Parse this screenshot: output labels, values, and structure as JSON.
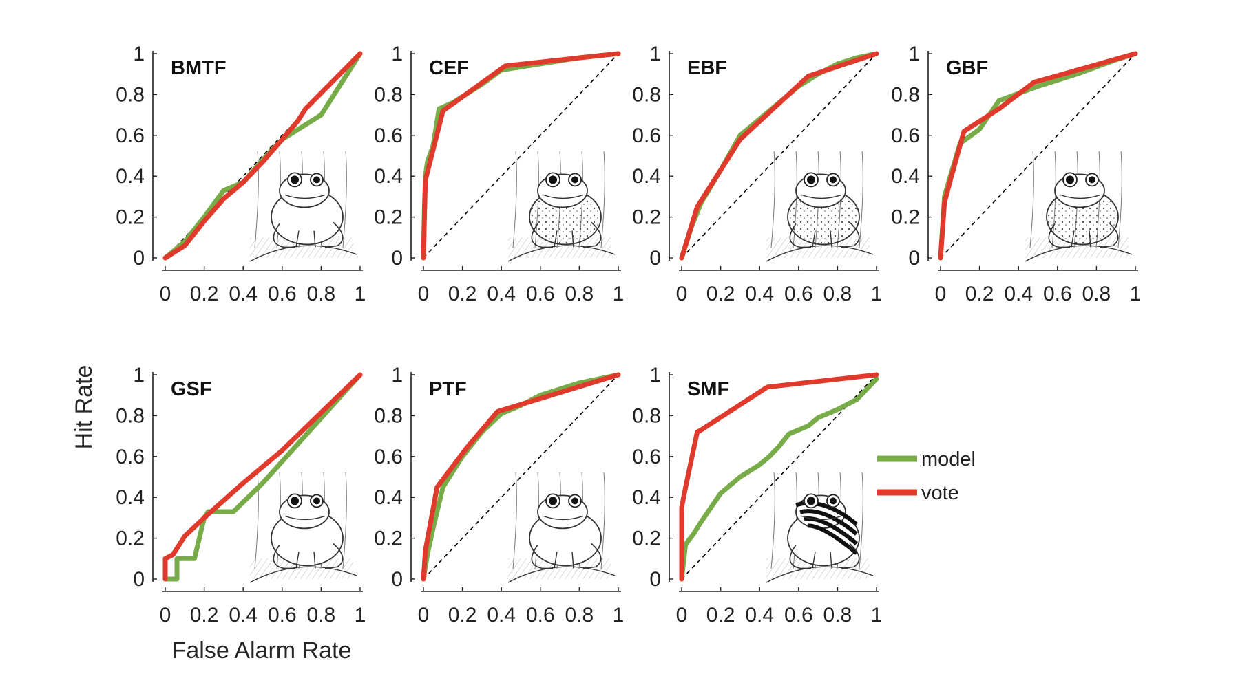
{
  "figure": {
    "xlabel": "False Alarm Rate",
    "ylabel": "Hit Rate"
  },
  "legend": {
    "position": "right",
    "entries": [
      {
        "name": "model",
        "color": "#77ac48"
      },
      {
        "name": "vote",
        "color": "#e03a2c"
      }
    ]
  },
  "colors": {
    "model": "#77ac48",
    "vote": "#e03a2c",
    "chance": "#000000",
    "axes": "#222222"
  },
  "chart_data": [
    {
      "type": "line",
      "title": "BMTF",
      "xlim": [
        0,
        1
      ],
      "ylim": [
        0,
        1
      ],
      "xticks": [
        "0",
        "0.2",
        "0.4",
        "0.6",
        "0.8",
        "1"
      ],
      "yticks": [
        "0",
        "0.2",
        "0.4",
        "0.6",
        "0.8",
        "1"
      ],
      "chance_line": true,
      "illustration": "frog-on-branch",
      "series": [
        {
          "name": "model",
          "points": [
            [
              0,
              0
            ],
            [
              0.05,
              0.04
            ],
            [
              0.1,
              0.08
            ],
            [
              0.2,
              0.2
            ],
            [
              0.3,
              0.33
            ],
            [
              0.4,
              0.37
            ],
            [
              0.5,
              0.48
            ],
            [
              0.6,
              0.58
            ],
            [
              0.8,
              0.7
            ],
            [
              1,
              1
            ]
          ]
        },
        {
          "name": "vote",
          "points": [
            [
              0,
              0
            ],
            [
              0.1,
              0.06
            ],
            [
              0.2,
              0.18
            ],
            [
              0.3,
              0.29
            ],
            [
              0.4,
              0.37
            ],
            [
              0.5,
              0.47
            ],
            [
              0.6,
              0.58
            ],
            [
              0.68,
              0.67
            ],
            [
              0.72,
              0.73
            ],
            [
              1,
              1
            ]
          ]
        }
      ]
    },
    {
      "type": "line",
      "title": "CEF",
      "xlim": [
        0,
        1
      ],
      "ylim": [
        0,
        1
      ],
      "xticks": [
        "0",
        "0.2",
        "0.4",
        "0.6",
        "0.8",
        "1"
      ],
      "yticks": [
        "0",
        "0.2",
        "0.4",
        "0.6",
        "0.8",
        "1"
      ],
      "chance_line": true,
      "illustration": "frog-in-grass",
      "series": [
        {
          "name": "model",
          "points": [
            [
              0,
              0
            ],
            [
              0.005,
              0.25
            ],
            [
              0.01,
              0.4
            ],
            [
              0.02,
              0.47
            ],
            [
              0.05,
              0.55
            ],
            [
              0.08,
              0.73
            ],
            [
              0.15,
              0.76
            ],
            [
              0.3,
              0.85
            ],
            [
              0.4,
              0.92
            ],
            [
              0.6,
              0.95
            ],
            [
              0.8,
              0.98
            ],
            [
              1,
              1
            ]
          ]
        },
        {
          "name": "vote",
          "points": [
            [
              0,
              0
            ],
            [
              0.01,
              0.38
            ],
            [
              0.1,
              0.72
            ],
            [
              0.42,
              0.94
            ],
            [
              1,
              1
            ]
          ]
        }
      ]
    },
    {
      "type": "line",
      "title": "EBF",
      "xlim": [
        0,
        1
      ],
      "ylim": [
        0,
        1
      ],
      "xticks": [
        "0",
        "0.2",
        "0.4",
        "0.6",
        "0.8",
        "1"
      ],
      "yticks": [
        "0",
        "0.2",
        "0.4",
        "0.6",
        "0.8",
        "1"
      ],
      "chance_line": true,
      "illustration": "toad",
      "series": [
        {
          "name": "model",
          "points": [
            [
              0,
              0
            ],
            [
              0.05,
              0.15
            ],
            [
              0.1,
              0.27
            ],
            [
              0.2,
              0.43
            ],
            [
              0.3,
              0.6
            ],
            [
              0.4,
              0.68
            ],
            [
              0.5,
              0.76
            ],
            [
              0.6,
              0.84
            ],
            [
              0.7,
              0.9
            ],
            [
              0.8,
              0.95
            ],
            [
              0.9,
              0.98
            ],
            [
              1,
              1
            ]
          ]
        },
        {
          "name": "vote",
          "points": [
            [
              0,
              0
            ],
            [
              0.08,
              0.25
            ],
            [
              0.3,
              0.58
            ],
            [
              0.65,
              0.89
            ],
            [
              1,
              1
            ]
          ]
        }
      ]
    },
    {
      "type": "line",
      "title": "GBF",
      "xlim": [
        0,
        1
      ],
      "ylim": [
        0,
        1
      ],
      "xticks": [
        "0",
        "0.2",
        "0.4",
        "0.6",
        "0.8",
        "1"
      ],
      "yticks": [
        "0",
        "0.2",
        "0.4",
        "0.6",
        "0.8",
        "1"
      ],
      "chance_line": true,
      "illustration": "bullfrog",
      "series": [
        {
          "name": "model",
          "points": [
            [
              0,
              0
            ],
            [
              0.02,
              0.3
            ],
            [
              0.05,
              0.4
            ],
            [
              0.1,
              0.56
            ],
            [
              0.2,
              0.63
            ],
            [
              0.3,
              0.77
            ],
            [
              0.5,
              0.84
            ],
            [
              0.7,
              0.9
            ],
            [
              0.9,
              0.97
            ],
            [
              1,
              1
            ]
          ]
        },
        {
          "name": "vote",
          "points": [
            [
              0,
              0
            ],
            [
              0.02,
              0.27
            ],
            [
              0.05,
              0.38
            ],
            [
              0.12,
              0.62
            ],
            [
              0.3,
              0.73
            ],
            [
              0.48,
              0.86
            ],
            [
              1,
              1
            ]
          ]
        }
      ]
    },
    {
      "type": "line",
      "title": "GSF",
      "xlim": [
        0,
        1
      ],
      "ylim": [
        0,
        1
      ],
      "xticks": [
        "0",
        "0.2",
        "0.4",
        "0.6",
        "0.8",
        "1"
      ],
      "yticks": [
        "0",
        "0.2",
        "0.4",
        "0.6",
        "0.8",
        "1"
      ],
      "chance_line": false,
      "illustration": "frog-with-ferns",
      "series": [
        {
          "name": "model",
          "points": [
            [
              0,
              0
            ],
            [
              0.06,
              0
            ],
            [
              0.06,
              0.1
            ],
            [
              0.15,
              0.1
            ],
            [
              0.2,
              0.3
            ],
            [
              0.22,
              0.33
            ],
            [
              0.35,
              0.33
            ],
            [
              0.5,
              0.47
            ],
            [
              1,
              1
            ]
          ]
        },
        {
          "name": "vote",
          "points": [
            [
              0,
              0
            ],
            [
              0,
              0.1
            ],
            [
              0.04,
              0.12
            ],
            [
              0.1,
              0.21
            ],
            [
              0.2,
              0.3
            ],
            [
              0.4,
              0.47
            ],
            [
              0.6,
              0.63
            ],
            [
              1,
              1
            ]
          ]
        }
      ]
    },
    {
      "type": "line",
      "title": "PTF",
      "xlim": [
        0,
        1
      ],
      "ylim": [
        0,
        1
      ],
      "xticks": [
        "0",
        "0.2",
        "0.4",
        "0.6",
        "0.8",
        "1"
      ],
      "yticks": [
        "0",
        "0.2",
        "0.4",
        "0.6",
        "0.8",
        "1"
      ],
      "chance_line": true,
      "illustration": "tree-frog",
      "series": [
        {
          "name": "model",
          "points": [
            [
              0,
              0
            ],
            [
              0.02,
              0.12
            ],
            [
              0.05,
              0.25
            ],
            [
              0.1,
              0.45
            ],
            [
              0.2,
              0.6
            ],
            [
              0.3,
              0.72
            ],
            [
              0.4,
              0.81
            ],
            [
              0.5,
              0.85
            ],
            [
              0.6,
              0.9
            ],
            [
              0.8,
              0.96
            ],
            [
              1,
              1
            ]
          ]
        },
        {
          "name": "vote",
          "points": [
            [
              0,
              0
            ],
            [
              0.01,
              0.14
            ],
            [
              0.07,
              0.45
            ],
            [
              0.22,
              0.64
            ],
            [
              0.38,
              0.82
            ],
            [
              1,
              1
            ]
          ]
        }
      ]
    },
    {
      "type": "line",
      "title": "SMF",
      "xlim": [
        0,
        1
      ],
      "ylim": [
        0,
        1
      ],
      "xticks": [
        "0",
        "0.2",
        "0.4",
        "0.6",
        "0.8",
        "1"
      ],
      "yticks": [
        "0",
        "0.2",
        "0.4",
        "0.6",
        "0.8",
        "1"
      ],
      "chance_line": true,
      "illustration": "striped-frog",
      "series": [
        {
          "name": "model",
          "points": [
            [
              0,
              0
            ],
            [
              0.02,
              0.17
            ],
            [
              0.06,
              0.22
            ],
            [
              0.1,
              0.28
            ],
            [
              0.15,
              0.35
            ],
            [
              0.2,
              0.42
            ],
            [
              0.3,
              0.5
            ],
            [
              0.4,
              0.56
            ],
            [
              0.45,
              0.6
            ],
            [
              0.5,
              0.65
            ],
            [
              0.55,
              0.71
            ],
            [
              0.65,
              0.75
            ],
            [
              0.7,
              0.79
            ],
            [
              0.8,
              0.83
            ],
            [
              0.9,
              0.88
            ],
            [
              0.95,
              0.93
            ],
            [
              1,
              0.98
            ]
          ]
        },
        {
          "name": "vote",
          "points": [
            [
              0,
              0
            ],
            [
              0,
              0.35
            ],
            [
              0.02,
              0.45
            ],
            [
              0.08,
              0.72
            ],
            [
              0.1,
              0.73
            ],
            [
              0.44,
              0.94
            ],
            [
              1,
              1
            ]
          ]
        }
      ]
    }
  ]
}
